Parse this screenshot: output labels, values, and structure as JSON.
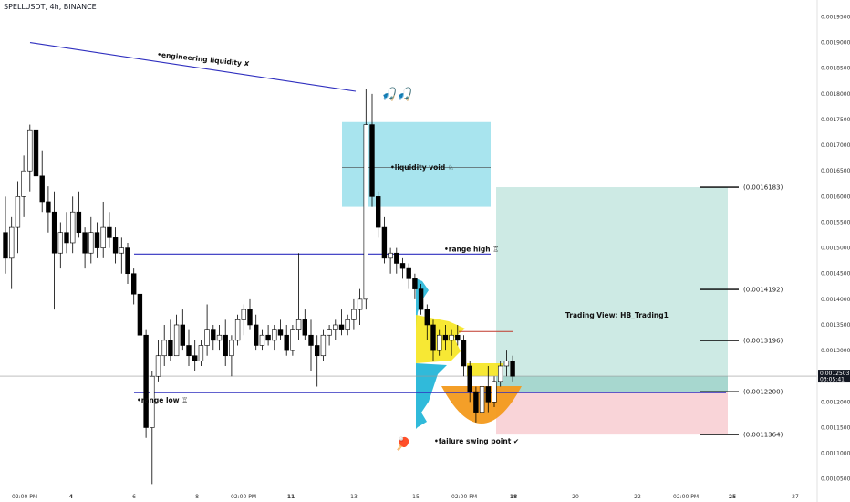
{
  "header": {
    "title": "SPELLUSDT, 4h, BINANCE"
  },
  "colors": {
    "bull": "#ffffff",
    "bear": "#000000",
    "wick": "#000000",
    "trend": "#2f2fbf",
    "void": "#a8e4ee",
    "target": "#cdeae4",
    "stop": "#f9d4d8",
    "vp_yellow": "#f6e51e",
    "vp_blue": "#19b2d6",
    "swing": "#f39a1c",
    "red_line": "#c0392b"
  },
  "annotations": {
    "engineering": "•engineering liquidity ✘",
    "void": "•liquidity void ♘",
    "range_high": "•range high ♖",
    "range_low": "•range low ♖",
    "failure": "•failure swing point ✔",
    "watermark": "Trading View: HB_Trading1",
    "fishers": "🎣🎣",
    "sweep": "🏓"
  },
  "levels": [
    "(0.0016183)",
    "(0.0014192)",
    "(0.0013196)",
    "(0.0012200)",
    "(0.0011364)"
  ],
  "price_tag": {
    "price": "0.0012503",
    "countdown": "03:05:41"
  },
  "chart_data": {
    "type": "candlestick",
    "title": "SPELLUSDT, 4h, BINANCE",
    "y_ticks": [
      0.00195,
      0.0019,
      0.00185,
      0.0018,
      0.00175,
      0.0017,
      0.00165,
      0.0016,
      0.00155,
      0.0015,
      0.00145,
      0.0014,
      0.00135,
      0.0013,
      0.00125,
      0.0012,
      0.00115,
      0.0011,
      0.00105
    ],
    "ylim": [
      0.00103,
      0.001965
    ],
    "x_ticks": [
      {
        "label": "02:00 PM",
        "bold": false
      },
      {
        "label": "4",
        "bold": true
      },
      {
        "label": "6",
        "bold": false
      },
      {
        "label": "8",
        "bold": false
      },
      {
        "label": "02:00 PM",
        "bold": false
      },
      {
        "label": "11",
        "bold": true
      },
      {
        "label": "13",
        "bold": false
      },
      {
        "label": "15",
        "bold": false
      },
      {
        "label": "02:00 PM",
        "bold": false
      },
      {
        "label": "18",
        "bold": true
      },
      {
        "label": "20",
        "bold": false
      },
      {
        "label": "22",
        "bold": false
      },
      {
        "label": "02:00 PM",
        "bold": false
      },
      {
        "label": "25",
        "bold": true
      },
      {
        "label": "27",
        "bold": false
      }
    ],
    "levels": [
      0.0016183,
      0.0014192,
      0.0013196,
      0.00122,
      0.0011364
    ],
    "current_price": 0.0012503,
    "range_high": 0.001488,
    "range_low": 0.001218,
    "liquidity_void": [
      0.00158,
      0.001745
    ],
    "trendline": [
      0.0019,
      0.001805
    ],
    "candles": [
      [
        0.00153,
        0.0016,
        0.00145,
        0.00148
      ],
      [
        0.00148,
        0.00156,
        0.00142,
        0.00154
      ],
      [
        0.00154,
        0.00163,
        0.00149,
        0.0016
      ],
      [
        0.0016,
        0.00168,
        0.00156,
        0.00165
      ],
      [
        0.00165,
        0.00174,
        0.00161,
        0.00173
      ],
      [
        0.00173,
        0.0019,
        0.00163,
        0.00164
      ],
      [
        0.00164,
        0.00169,
        0.00157,
        0.00159
      ],
      [
        0.00159,
        0.00162,
        0.00153,
        0.00157
      ],
      [
        0.00157,
        0.00161,
        0.00138,
        0.00149
      ],
      [
        0.00149,
        0.00155,
        0.00146,
        0.00153
      ],
      [
        0.00153,
        0.00157,
        0.00149,
        0.00151
      ],
      [
        0.00151,
        0.0016,
        0.00149,
        0.00157
      ],
      [
        0.00157,
        0.00161,
        0.00152,
        0.00153
      ],
      [
        0.00153,
        0.00154,
        0.00146,
        0.00149
      ],
      [
        0.00149,
        0.00156,
        0.00147,
        0.00153
      ],
      [
        0.00153,
        0.00155,
        0.00148,
        0.0015
      ],
      [
        0.0015,
        0.00159,
        0.00148,
        0.00154
      ],
      [
        0.00154,
        0.00157,
        0.0015,
        0.00152
      ],
      [
        0.00152,
        0.00154,
        0.00147,
        0.00149
      ],
      [
        0.00149,
        0.00152,
        0.00145,
        0.0015
      ],
      [
        0.0015,
        0.00151,
        0.00143,
        0.00145
      ],
      [
        0.00145,
        0.00146,
        0.00139,
        0.00141
      ],
      [
        0.00141,
        0.00142,
        0.0013,
        0.00133
      ],
      [
        0.00133,
        0.00134,
        0.00113,
        0.00115
      ],
      [
        0.00115,
        0.00126,
        0.00104,
        0.00125
      ],
      [
        0.00125,
        0.00132,
        0.00124,
        0.00129
      ],
      [
        0.00129,
        0.00135,
        0.00127,
        0.00132
      ],
      [
        0.00132,
        0.00136,
        0.00128,
        0.00129
      ],
      [
        0.00129,
        0.00137,
        0.00129,
        0.00135
      ],
      [
        0.00135,
        0.00138,
        0.0013,
        0.00131
      ],
      [
        0.00131,
        0.00134,
        0.00127,
        0.00129
      ],
      [
        0.00129,
        0.00132,
        0.00126,
        0.00128
      ],
      [
        0.00128,
        0.00132,
        0.00127,
        0.00131
      ],
      [
        0.00131,
        0.00139,
        0.00129,
        0.00134
      ],
      [
        0.00134,
        0.00135,
        0.0013,
        0.00132
      ],
      [
        0.00132,
        0.00135,
        0.0013,
        0.00133
      ],
      [
        0.00133,
        0.00136,
        0.00127,
        0.00129
      ],
      [
        0.00129,
        0.00133,
        0.00125,
        0.00132
      ],
      [
        0.00132,
        0.00137,
        0.00131,
        0.00136
      ],
      [
        0.00136,
        0.00139,
        0.00133,
        0.00138
      ],
      [
        0.00138,
        0.0014,
        0.00134,
        0.00135
      ],
      [
        0.00135,
        0.00137,
        0.0013,
        0.00131
      ],
      [
        0.00131,
        0.00134,
        0.0013,
        0.00133
      ],
      [
        0.00133,
        0.00135,
        0.00131,
        0.00132
      ],
      [
        0.00132,
        0.00135,
        0.0013,
        0.00134
      ],
      [
        0.00134,
        0.00136,
        0.00132,
        0.00133
      ],
      [
        0.00133,
        0.00135,
        0.00129,
        0.0013
      ],
      [
        0.0013,
        0.00135,
        0.00129,
        0.00134
      ],
      [
        0.00134,
        0.00149,
        0.00132,
        0.00136
      ],
      [
        0.00136,
        0.00138,
        0.00132,
        0.00133
      ],
      [
        0.00133,
        0.00136,
        0.00126,
        0.00131
      ],
      [
        0.00131,
        0.00133,
        0.00123,
        0.00129
      ],
      [
        0.00129,
        0.00134,
        0.00128,
        0.00133
      ],
      [
        0.00133,
        0.00135,
        0.00131,
        0.00134
      ],
      [
        0.00134,
        0.00136,
        0.00132,
        0.00135
      ],
      [
        0.00135,
        0.00138,
        0.00133,
        0.00134
      ],
      [
        0.00134,
        0.00137,
        0.00133,
        0.00136
      ],
      [
        0.00136,
        0.0014,
        0.00134,
        0.00138
      ],
      [
        0.00138,
        0.00142,
        0.00135,
        0.0014
      ],
      [
        0.0014,
        0.00181,
        0.00138,
        0.00174
      ],
      [
        0.00174,
        0.0018,
        0.00158,
        0.0016
      ],
      [
        0.0016,
        0.00161,
        0.00152,
        0.00154
      ],
      [
        0.00154,
        0.00156,
        0.00147,
        0.00148
      ],
      [
        0.00148,
        0.0015,
        0.00145,
        0.00149
      ],
      [
        0.00149,
        0.0015,
        0.00145,
        0.00147
      ],
      [
        0.00147,
        0.00148,
        0.00144,
        0.00146
      ],
      [
        0.00146,
        0.00147,
        0.00142,
        0.00144
      ],
      [
        0.00144,
        0.00145,
        0.0014,
        0.00142
      ],
      [
        0.00142,
        0.00143,
        0.00137,
        0.00138
      ],
      [
        0.00138,
        0.00139,
        0.00132,
        0.00135
      ],
      [
        0.00135,
        0.00136,
        0.00128,
        0.0013
      ],
      [
        0.0013,
        0.00134,
        0.00129,
        0.00133
      ],
      [
        0.00133,
        0.00135,
        0.0013,
        0.00132
      ],
      [
        0.00132,
        0.00134,
        0.00129,
        0.00133
      ],
      [
        0.00133,
        0.00135,
        0.00131,
        0.00132
      ],
      [
        0.00132,
        0.00133,
        0.00125,
        0.00127
      ],
      [
        0.00127,
        0.00128,
        0.0012,
        0.00122
      ],
      [
        0.00122,
        0.00123,
        0.00116,
        0.00118
      ],
      [
        0.00118,
        0.00125,
        0.00115,
        0.00123
      ],
      [
        0.00123,
        0.00127,
        0.00118,
        0.0012
      ],
      [
        0.0012,
        0.00125,
        0.00119,
        0.00124
      ],
      [
        0.00124,
        0.00128,
        0.00123,
        0.00127
      ],
      [
        0.00127,
        0.0013,
        0.00125,
        0.00128
      ],
      [
        0.00128,
        0.00129,
        0.00124,
        0.00125
      ]
    ]
  }
}
